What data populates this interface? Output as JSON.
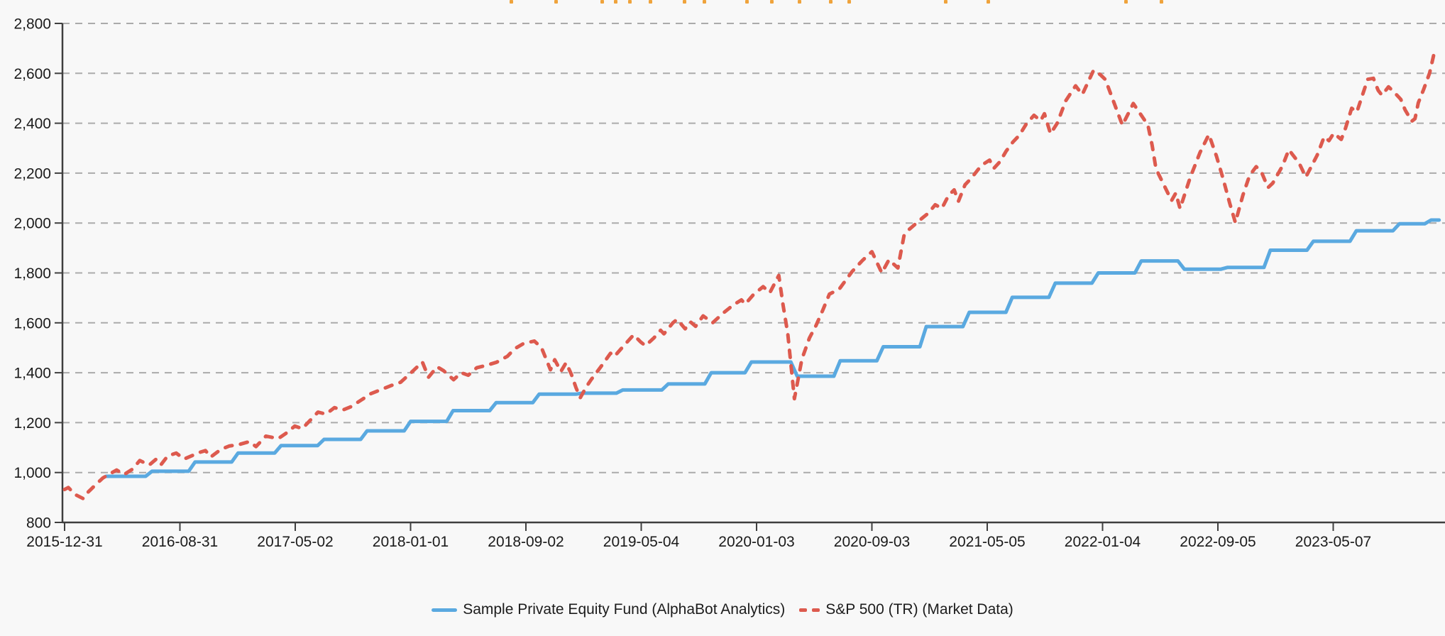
{
  "page": {
    "background": "#f8f8f8"
  },
  "colors": {
    "pe_blue": "#5AA9E0",
    "sp_red": "#DD5A4E",
    "grid_gray": "#ABABAB",
    "axis_dark": "#3F3F3F",
    "text_dark": "#1B1B1B",
    "fragment_orange": "#EFA33C",
    "background": "#F8F8F8"
  },
  "clipped_title_fragments": {
    "color": "#EFA33C",
    "positions": [
      718,
      781,
      846,
      865,
      885,
      914,
      962,
      990,
      1050,
      1085,
      1124,
      1168,
      1194,
      1330,
      1390,
      1584,
      1634
    ]
  },
  "chart_data": {
    "type": "line",
    "title": "",
    "xlabel": "",
    "ylabel": "",
    "ylim": [
      800,
      2800
    ],
    "grid": "horizontal-dashed",
    "legend_position": "bottom-center",
    "y_ticks": [
      {
        "v": 800,
        "label": "800"
      },
      {
        "v": 1000,
        "label": "1,000"
      },
      {
        "v": 1200,
        "label": "1,200"
      },
      {
        "v": 1400,
        "label": "1,400"
      },
      {
        "v": 1600,
        "label": "1,600"
      },
      {
        "v": 1800,
        "label": "1,800"
      },
      {
        "v": 2000,
        "label": "2,000"
      },
      {
        "v": 2200,
        "label": "2,200"
      },
      {
        "v": 2400,
        "label": "2,400"
      },
      {
        "v": 2600,
        "label": "2,600"
      },
      {
        "v": 2800,
        "label": "2,800"
      }
    ],
    "x_ticks": [
      "2015-12-31",
      "2016-08-31",
      "2017-05-02",
      "2018-01-01",
      "2018-09-02",
      "2019-05-04",
      "2020-01-03",
      "2020-09-03",
      "2021-05-05",
      "2022-01-04",
      "2022-09-05",
      "2023-05-07"
    ],
    "series": [
      {
        "name": "Sample Private Equity Fund (AlphaBot Analytics)",
        "type": "step",
        "style": "solid",
        "color": "#5AA9E0",
        "points": [
          [
            "2016-03-28",
            985
          ],
          [
            "2016-06-27",
            1005
          ],
          [
            "2016-09-26",
            1042
          ],
          [
            "2016-12-26",
            1078
          ],
          [
            "2017-03-27",
            1108
          ],
          [
            "2017-06-26",
            1133
          ],
          [
            "2017-09-25",
            1167
          ],
          [
            "2017-12-26",
            1205
          ],
          [
            "2018-03-26",
            1248
          ],
          [
            "2018-06-25",
            1280
          ],
          [
            "2018-09-24",
            1314
          ],
          [
            "2018-12-24",
            1318
          ],
          [
            "2019-03-20",
            1331
          ],
          [
            "2019-06-24",
            1355
          ],
          [
            "2019-09-23",
            1400
          ],
          [
            "2019-12-17",
            1443
          ],
          [
            "2020-03-23",
            1386
          ],
          [
            "2020-06-22",
            1448
          ],
          [
            "2020-09-21",
            1504
          ],
          [
            "2020-12-21",
            1585
          ],
          [
            "2021-03-22",
            1642
          ],
          [
            "2021-06-21",
            1702
          ],
          [
            "2021-09-20",
            1759
          ],
          [
            "2021-12-20",
            1800
          ],
          [
            "2022-03-21",
            1848
          ],
          [
            "2022-06-20",
            1815
          ],
          [
            "2022-09-19",
            1822
          ],
          [
            "2022-12-19",
            1891
          ],
          [
            "2023-03-20",
            1927
          ],
          [
            "2023-06-19",
            1969
          ],
          [
            "2023-09-18",
            1997
          ],
          [
            "2023-11-24",
            2012
          ],
          [
            "2023-12-11",
            2012
          ]
        ]
      },
      {
        "name": "S&P 500 (TR) (Market Data)",
        "type": "line",
        "style": "dashed",
        "color": "#DD5A4E",
        "points": [
          [
            "2015-12-31",
            932
          ],
          [
            "2016-01-08",
            940
          ],
          [
            "2016-01-22",
            912
          ],
          [
            "2016-02-08",
            896
          ],
          [
            "2016-02-19",
            922
          ],
          [
            "2016-03-04",
            948
          ],
          [
            "2016-03-21",
            978
          ],
          [
            "2016-04-06",
            996
          ],
          [
            "2016-04-19",
            1010
          ],
          [
            "2016-05-05",
            992
          ],
          [
            "2016-05-23",
            1014
          ],
          [
            "2016-06-07",
            1048
          ],
          [
            "2016-06-27",
            1030
          ],
          [
            "2016-07-12",
            1054
          ],
          [
            "2016-07-22",
            1032
          ],
          [
            "2016-08-05",
            1066
          ],
          [
            "2016-08-23",
            1078
          ],
          [
            "2016-09-09",
            1054
          ],
          [
            "2016-09-26",
            1068
          ],
          [
            "2016-10-10",
            1080
          ],
          [
            "2016-10-24",
            1088
          ],
          [
            "2016-11-04",
            1062
          ],
          [
            "2016-11-25",
            1092
          ],
          [
            "2016-12-13",
            1106
          ],
          [
            "2017-01-03",
            1112
          ],
          [
            "2017-01-25",
            1124
          ],
          [
            "2017-02-08",
            1104
          ],
          [
            "2017-03-01",
            1146
          ],
          [
            "2017-03-27",
            1136
          ],
          [
            "2017-04-13",
            1158
          ],
          [
            "2017-05-01",
            1186
          ],
          [
            "2017-05-17",
            1176
          ],
          [
            "2017-06-02",
            1208
          ],
          [
            "2017-06-19",
            1242
          ],
          [
            "2017-07-06",
            1234
          ],
          [
            "2017-07-24",
            1260
          ],
          [
            "2017-08-10",
            1250
          ],
          [
            "2017-08-28",
            1264
          ],
          [
            "2017-09-18",
            1290
          ],
          [
            "2017-10-09",
            1316
          ],
          [
            "2017-10-30",
            1332
          ],
          [
            "2017-11-20",
            1348
          ],
          [
            "2017-12-11",
            1362
          ],
          [
            "2018-01-02",
            1400
          ],
          [
            "2018-01-26",
            1443
          ],
          [
            "2018-02-08",
            1382
          ],
          [
            "2018-02-26",
            1424
          ],
          [
            "2018-03-12",
            1408
          ],
          [
            "2018-04-02",
            1372
          ],
          [
            "2018-04-18",
            1400
          ],
          [
            "2018-05-03",
            1390
          ],
          [
            "2018-05-21",
            1420
          ],
          [
            "2018-06-11",
            1430
          ],
          [
            "2018-07-02",
            1442
          ],
          [
            "2018-07-25",
            1466
          ],
          [
            "2018-08-09",
            1496
          ],
          [
            "2018-08-29",
            1518
          ],
          [
            "2018-09-20",
            1527
          ],
          [
            "2018-10-05",
            1500
          ],
          [
            "2018-10-24",
            1412
          ],
          [
            "2018-11-02",
            1452
          ],
          [
            "2018-11-15",
            1405
          ],
          [
            "2018-11-26",
            1440
          ],
          [
            "2018-12-07",
            1395
          ],
          [
            "2018-12-17",
            1340
          ],
          [
            "2018-12-26",
            1300
          ],
          [
            "2019-01-08",
            1344
          ],
          [
            "2019-01-18",
            1372
          ],
          [
            "2019-02-08",
            1425
          ],
          [
            "2019-02-28",
            1478
          ],
          [
            "2019-03-08",
            1465
          ],
          [
            "2019-03-29",
            1510
          ],
          [
            "2019-04-18",
            1552
          ],
          [
            "2019-05-03",
            1523
          ],
          [
            "2019-05-13",
            1508
          ],
          [
            "2019-05-31",
            1540
          ],
          [
            "2019-06-14",
            1570
          ],
          [
            "2019-06-21",
            1556
          ],
          [
            "2019-07-10",
            1600
          ],
          [
            "2019-07-19",
            1614
          ],
          [
            "2019-08-05",
            1576
          ],
          [
            "2019-08-16",
            1604
          ],
          [
            "2019-08-27",
            1586
          ],
          [
            "2019-09-12",
            1628
          ],
          [
            "2019-10-02",
            1600
          ],
          [
            "2019-10-25",
            1640
          ],
          [
            "2019-11-15",
            1672
          ],
          [
            "2019-12-02",
            1692
          ],
          [
            "2019-12-10",
            1675
          ],
          [
            "2019-12-27",
            1712
          ],
          [
            "2020-01-17",
            1745
          ],
          [
            "2020-01-31",
            1720
          ],
          [
            "2020-02-19",
            1790
          ],
          [
            "2020-02-28",
            1672
          ],
          [
            "2020-03-09",
            1556
          ],
          [
            "2020-03-23",
            1296
          ],
          [
            "2020-04-08",
            1455
          ],
          [
            "2020-04-24",
            1540
          ],
          [
            "2020-05-08",
            1590
          ],
          [
            "2020-05-22",
            1650
          ],
          [
            "2020-06-05",
            1715
          ],
          [
            "2020-06-26",
            1735
          ],
          [
            "2020-07-23",
            1805
          ],
          [
            "2020-08-14",
            1850
          ],
          [
            "2020-09-03",
            1885
          ],
          [
            "2020-09-24",
            1800
          ],
          [
            "2020-10-09",
            1853
          ],
          [
            "2020-10-28",
            1820
          ],
          [
            "2020-11-10",
            1950
          ],
          [
            "2020-11-20",
            1973
          ],
          [
            "2020-12-04",
            1996
          ],
          [
            "2020-12-18",
            2019
          ],
          [
            "2020-12-31",
            2039
          ],
          [
            "2021-01-15",
            2073
          ],
          [
            "2021-01-29",
            2059
          ],
          [
            "2021-02-12",
            2110
          ],
          [
            "2021-02-24",
            2133
          ],
          [
            "2021-03-05",
            2087
          ],
          [
            "2021-03-19",
            2153
          ],
          [
            "2021-04-02",
            2181
          ],
          [
            "2021-04-16",
            2215
          ],
          [
            "2021-04-30",
            2240
          ],
          [
            "2021-05-10",
            2252
          ],
          [
            "2021-05-19",
            2219
          ],
          [
            "2021-06-01",
            2246
          ],
          [
            "2021-06-14",
            2288
          ],
          [
            "2021-06-28",
            2324
          ],
          [
            "2021-07-12",
            2352
          ],
          [
            "2021-07-26",
            2395
          ],
          [
            "2021-08-12",
            2432
          ],
          [
            "2021-08-26",
            2410
          ],
          [
            "2021-09-03",
            2438
          ],
          [
            "2021-09-16",
            2358
          ],
          [
            "2021-09-30",
            2400
          ],
          [
            "2021-10-18",
            2490
          ],
          [
            "2021-11-08",
            2550
          ],
          [
            "2021-11-22",
            2515
          ],
          [
            "2021-12-16",
            2612
          ],
          [
            "2021-12-30",
            2595
          ],
          [
            "2022-01-10",
            2575
          ],
          [
            "2022-02-04",
            2448
          ],
          [
            "2022-02-15",
            2392
          ],
          [
            "2022-03-10",
            2479
          ],
          [
            "2022-04-10",
            2393
          ],
          [
            "2022-04-19",
            2311
          ],
          [
            "2022-04-27",
            2217
          ],
          [
            "2022-05-12",
            2160
          ],
          [
            "2022-05-30",
            2090
          ],
          [
            "2022-06-08",
            2120
          ],
          [
            "2022-06-17",
            2058
          ],
          [
            "2022-07-08",
            2180
          ],
          [
            "2022-07-29",
            2282
          ],
          [
            "2022-08-17",
            2355
          ],
          [
            "2022-09-02",
            2268
          ],
          [
            "2022-09-16",
            2178
          ],
          [
            "2022-09-30",
            2080
          ],
          [
            "2022-10-12",
            2002
          ],
          [
            "2022-10-28",
            2112
          ],
          [
            "2022-11-11",
            2190
          ],
          [
            "2022-11-25",
            2226
          ],
          [
            "2022-12-06",
            2205
          ],
          [
            "2022-12-20",
            2142
          ],
          [
            "2022-12-30",
            2160
          ],
          [
            "2023-01-20",
            2230
          ],
          [
            "2023-02-02",
            2294
          ],
          [
            "2023-02-24",
            2240
          ],
          [
            "2023-03-10",
            2184
          ],
          [
            "2023-03-24",
            2235
          ],
          [
            "2023-04-03",
            2272
          ],
          [
            "2023-04-18",
            2346
          ],
          [
            "2023-04-28",
            2330
          ],
          [
            "2023-05-08",
            2360
          ],
          [
            "2023-05-24",
            2335
          ],
          [
            "2023-06-02",
            2380
          ],
          [
            "2023-06-15",
            2460
          ],
          [
            "2023-06-26",
            2445
          ],
          [
            "2023-07-10",
            2525
          ],
          [
            "2023-07-19",
            2576
          ],
          [
            "2023-07-31",
            2580
          ],
          [
            "2023-08-10",
            2532
          ],
          [
            "2023-08-18",
            2512
          ],
          [
            "2023-09-01",
            2546
          ],
          [
            "2023-09-14",
            2522
          ],
          [
            "2023-09-27",
            2496
          ],
          [
            "2023-10-06",
            2454
          ],
          [
            "2023-10-20",
            2408
          ],
          [
            "2023-10-27",
            2418
          ],
          [
            "2023-11-03",
            2482
          ],
          [
            "2023-11-14",
            2534
          ],
          [
            "2023-11-27",
            2602
          ],
          [
            "2023-12-08",
            2694
          ]
        ]
      }
    ]
  }
}
